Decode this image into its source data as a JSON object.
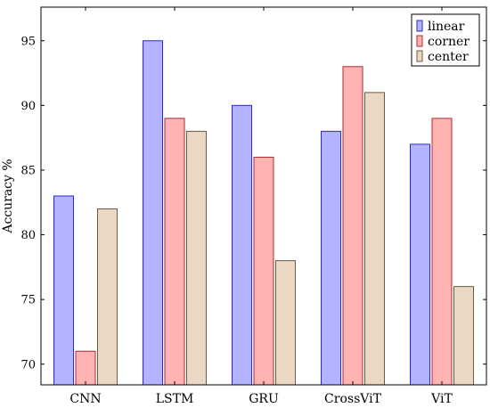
{
  "chart_data": {
    "type": "bar",
    "ylabel": "Accuracy %",
    "xlabel": "",
    "ylim": [
      68.4,
      97.6
    ],
    "yticks": [
      70,
      75,
      80,
      85,
      90,
      95
    ],
    "categories": [
      "CNN",
      "LSTM",
      "GRU",
      "CrossViT",
      "ViT"
    ],
    "series": [
      {
        "name": "linear",
        "values": [
          83,
          95,
          90,
          88,
          87
        ],
        "fill": "#b3b3ff",
        "stroke": "#2a2ad0"
      },
      {
        "name": "corner",
        "values": [
          71,
          89,
          86,
          93,
          89
        ],
        "fill": "#ffb3b3",
        "stroke": "#b02a2a"
      },
      {
        "name": "center",
        "values": [
          82,
          88,
          78,
          91,
          76
        ],
        "fill": "#ead8c4",
        "stroke": "#6e5a40"
      }
    ],
    "legend": "top-right",
    "grid": false
  }
}
